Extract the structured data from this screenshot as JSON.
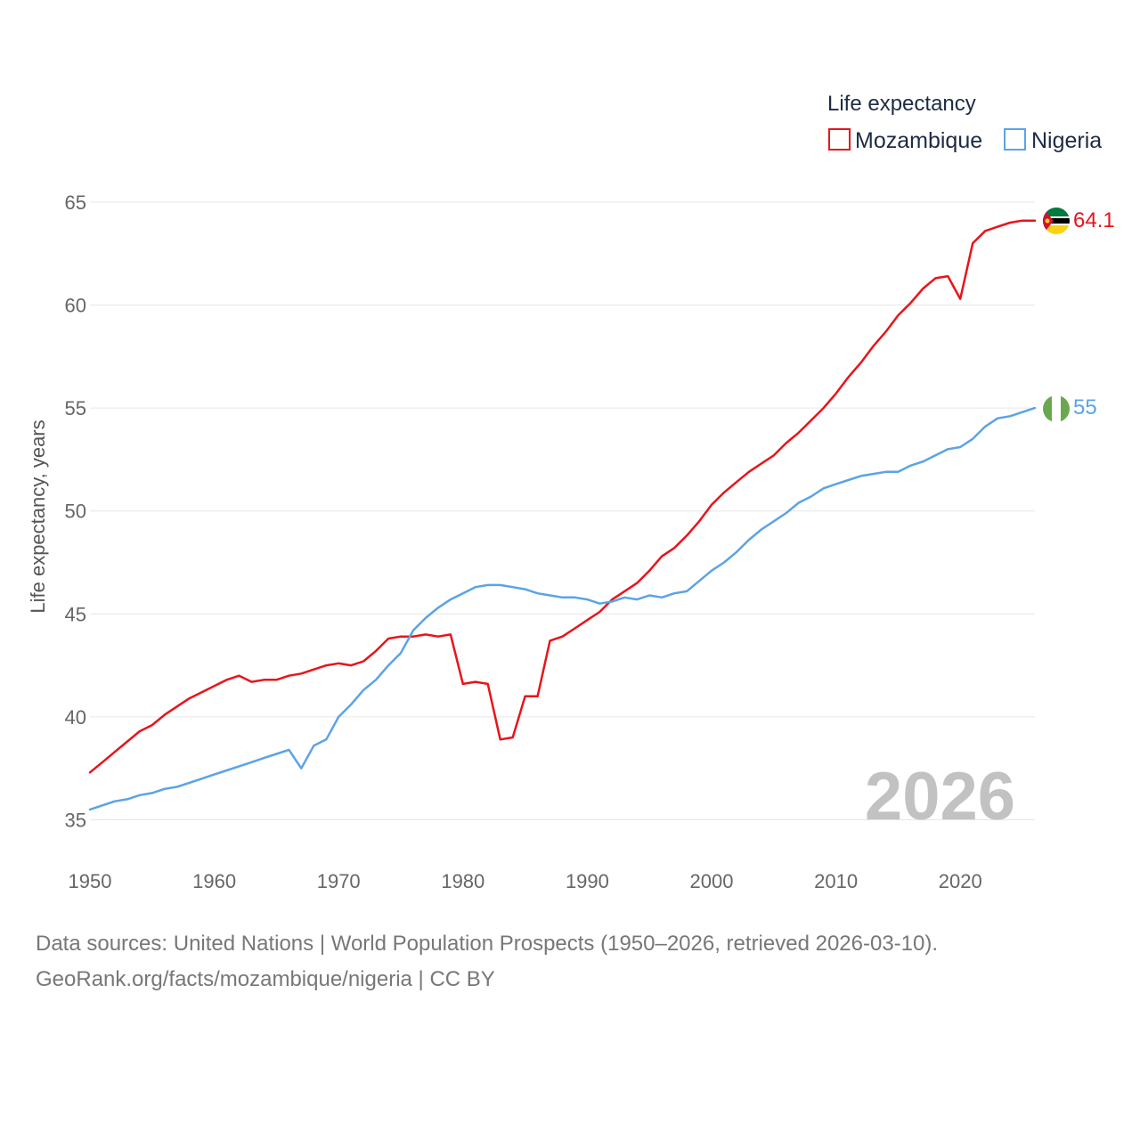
{
  "chart_data": {
    "type": "line",
    "title": "",
    "xlabel": "",
    "ylabel": "Life expectancy, years",
    "legend_title": "Life expectancy",
    "legend_position": "top-right",
    "xlim": [
      1950,
      2026
    ],
    "ylim": [
      33,
      66
    ],
    "xticks": [
      1950,
      1960,
      1970,
      1980,
      1990,
      2000,
      2010,
      2020
    ],
    "yticks": [
      35,
      40,
      45,
      50,
      55,
      60,
      65
    ],
    "grid": true,
    "highlight_year": "2026",
    "x": [
      1950,
      1951,
      1952,
      1953,
      1954,
      1955,
      1956,
      1957,
      1958,
      1959,
      1960,
      1961,
      1962,
      1963,
      1964,
      1965,
      1966,
      1967,
      1968,
      1969,
      1970,
      1971,
      1972,
      1973,
      1974,
      1975,
      1976,
      1977,
      1978,
      1979,
      1980,
      1981,
      1982,
      1983,
      1984,
      1985,
      1986,
      1987,
      1988,
      1989,
      1990,
      1991,
      1992,
      1993,
      1994,
      1995,
      1996,
      1997,
      1998,
      1999,
      2000,
      2001,
      2002,
      2003,
      2004,
      2005,
      2006,
      2007,
      2008,
      2009,
      2010,
      2011,
      2012,
      2013,
      2014,
      2015,
      2016,
      2017,
      2018,
      2019,
      2020,
      2021,
      2022,
      2023,
      2024,
      2025,
      2026
    ],
    "series": [
      {
        "name": "Mozambique",
        "color": "#e8141a",
        "end_label": "64.1",
        "flag_icon": "mozambique-flag-icon",
        "values": [
          37.3,
          37.8,
          38.3,
          38.8,
          39.3,
          39.6,
          40.1,
          40.5,
          40.9,
          41.2,
          41.5,
          41.8,
          42.0,
          41.7,
          41.8,
          41.8,
          42.0,
          42.1,
          42.3,
          42.5,
          42.6,
          42.5,
          42.7,
          43.2,
          43.8,
          43.9,
          43.9,
          44.0,
          43.9,
          44.0,
          41.6,
          41.7,
          41.6,
          38.9,
          39.0,
          41.0,
          41.0,
          43.7,
          43.9,
          44.3,
          44.7,
          45.1,
          45.7,
          46.1,
          46.5,
          47.1,
          47.8,
          48.2,
          48.8,
          49.5,
          50.3,
          50.9,
          51.4,
          51.9,
          52.3,
          52.7,
          53.3,
          53.8,
          54.4,
          55.0,
          55.7,
          56.5,
          57.2,
          58.0,
          58.7,
          59.5,
          60.1,
          60.8,
          61.3,
          61.4,
          60.3,
          63.0,
          63.6,
          63.8,
          64.0,
          64.1,
          64.1
        ]
      },
      {
        "name": "Nigeria",
        "color": "#5ba3e6",
        "end_label": "55",
        "flag_icon": "nigeria-flag-icon",
        "values": [
          35.5,
          35.7,
          35.9,
          36.0,
          36.2,
          36.3,
          36.5,
          36.6,
          36.8,
          37.0,
          37.2,
          37.4,
          37.6,
          37.8,
          38.0,
          38.2,
          38.4,
          37.5,
          38.6,
          38.9,
          40.0,
          40.6,
          41.3,
          41.8,
          42.5,
          43.1,
          44.2,
          44.8,
          45.3,
          45.7,
          46.0,
          46.3,
          46.4,
          46.4,
          46.3,
          46.2,
          46.0,
          45.9,
          45.8,
          45.8,
          45.7,
          45.5,
          45.6,
          45.8,
          45.7,
          45.9,
          45.8,
          46.0,
          46.1,
          46.6,
          47.1,
          47.5,
          48.0,
          48.6,
          49.1,
          49.5,
          49.9,
          50.4,
          50.7,
          51.1,
          51.3,
          51.5,
          51.7,
          51.8,
          51.9,
          51.9,
          52.2,
          52.4,
          52.7,
          53.0,
          53.1,
          53.5,
          54.1,
          54.5,
          54.6,
          54.8,
          55.0
        ]
      }
    ]
  },
  "footer": {
    "line1": "Data sources: United Nations | World Population Prospects (1950–2026, retrieved 2026-03-10).",
    "line2": "GeoRank.org/facts/mozambique/nigeria | CC BY"
  }
}
